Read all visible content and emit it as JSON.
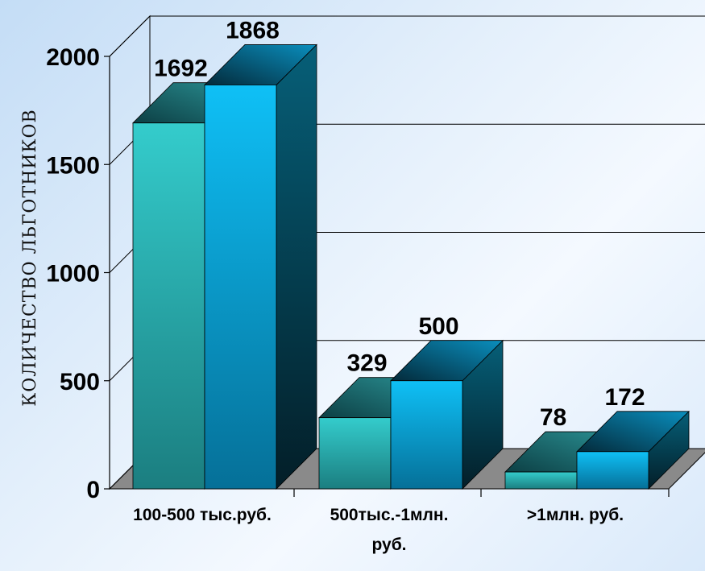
{
  "chart_data": {
    "type": "bar",
    "style": "3d-clustered",
    "categories": [
      "100-500 тыс.руб.",
      "500тыс.-1млн. руб.",
      ">1млн. руб."
    ],
    "category_lines": [
      [
        "100-500 тыс.руб."
      ],
      [
        "500тыс.-1млн.",
        "руб."
      ],
      [
        ">1млн. руб."
      ]
    ],
    "series": [
      {
        "values": [
          1692,
          329,
          78
        ],
        "color": "#2ec8c8"
      },
      {
        "values": [
          1868,
          500,
          172
        ],
        "color": "#0ab4f0"
      }
    ],
    "data_labels": [
      [
        "1692",
        "329",
        "78"
      ],
      [
        "1868",
        "500",
        "172"
      ]
    ],
    "ylabel": "КОЛИЧЕСТВО ЛЬГОТНИКОВ",
    "yticks": [
      0,
      500,
      1000,
      1500,
      2000
    ],
    "ytick_labels": [
      "0",
      "500",
      "1000",
      "1500",
      "2000"
    ],
    "ylim": [
      0,
      2000
    ],
    "grid": true,
    "legend": "none",
    "colors": {
      "floor": "#8a8a8a",
      "wall_lines": "#000000"
    }
  }
}
